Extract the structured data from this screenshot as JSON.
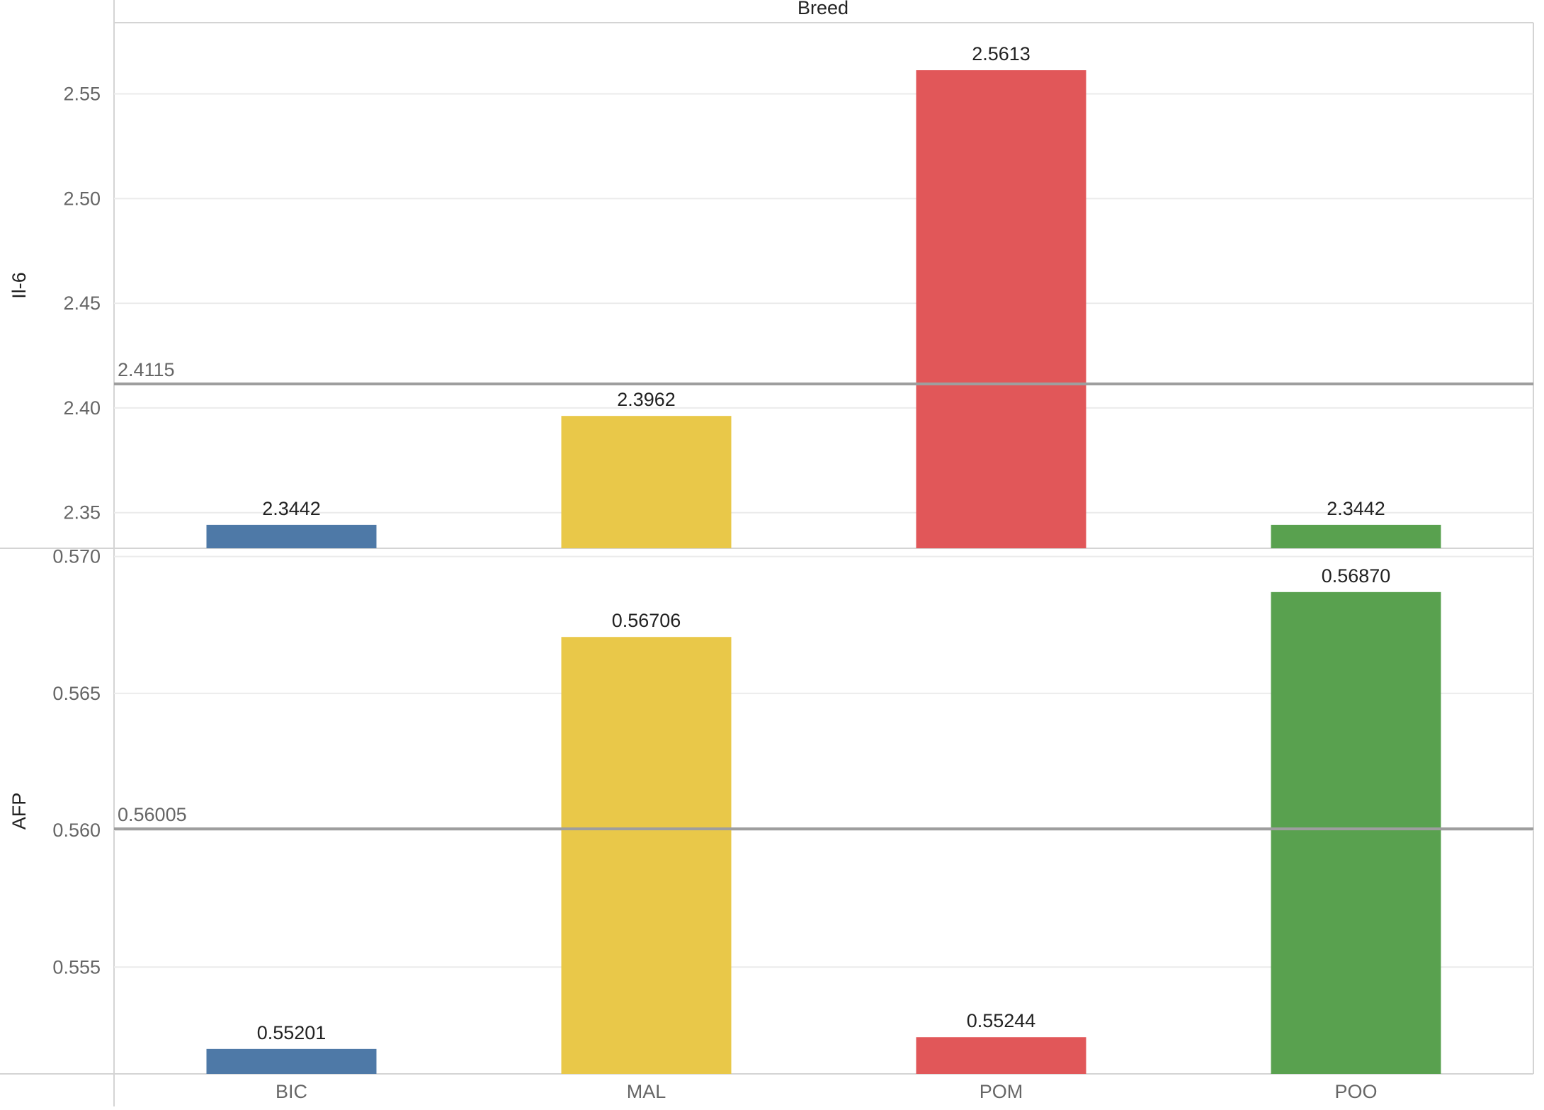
{
  "chart_data": {
    "type": "bar",
    "column_header": "Breed",
    "categories": [
      "BIC",
      "MAL",
      "POM",
      "POO"
    ],
    "colors": {
      "BIC": "#4e79a7",
      "MAL": "#e9c849",
      "POM": "#e15759",
      "POO": "#59a14f"
    },
    "panels": [
      {
        "measure": "Il-6",
        "values": [
          2.3442,
          2.3962,
          2.5613,
          2.3442
        ],
        "value_labels": [
          "2.3442",
          "2.3962",
          "2.5613",
          "2.3442"
        ],
        "ylim": [
          2.333,
          2.584
        ],
        "yticks": [
          2.35,
          2.4,
          2.45,
          2.5,
          2.55
        ],
        "ytick_labels": [
          "2.35",
          "2.40",
          "2.45",
          "2.50",
          "2.55"
        ],
        "reference_line": {
          "value": 2.4115,
          "label": "2.4115"
        }
      },
      {
        "measure": "AFP",
        "values": [
          0.55201,
          0.56706,
          0.55244,
          0.5687
        ],
        "value_labels": [
          "0.55201",
          "0.56706",
          "0.55244",
          "0.56870"
        ],
        "ylim": [
          0.5511,
          0.5703
        ],
        "yticks": [
          0.555,
          0.56,
          0.565,
          0.57
        ],
        "ytick_labels": [
          "0.555",
          "0.560",
          "0.565",
          "0.570"
        ],
        "reference_line": {
          "value": 0.56005,
          "label": "0.56005"
        }
      }
    ],
    "grid": true,
    "legend": "none"
  }
}
